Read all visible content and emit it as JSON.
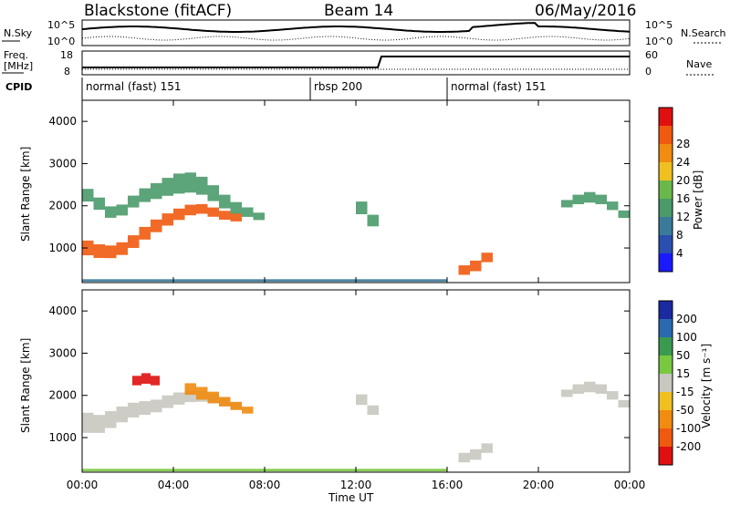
{
  "header": {
    "station": "Blackstone (fitACF)",
    "beam": "Beam 14",
    "date": "06/May/2016"
  },
  "sky_panel": {
    "left_label": "N.Sky",
    "right_label": "N.Search",
    "left_ticks": [
      "10^5",
      "10^0"
    ],
    "right_ticks": [
      "10^5",
      "10^0"
    ]
  },
  "freq_panel": {
    "left_label_1": "Freq.",
    "left_label_2": "[MHz]",
    "right_label": "Nave",
    "left_ticks": [
      "18",
      "8"
    ],
    "right_ticks": [
      "60",
      "0"
    ]
  },
  "cpid": {
    "label": "CPID",
    "segments": [
      {
        "name": "normal (fast) 151",
        "start_hour": 0
      },
      {
        "name": "rbsp 200",
        "start_hour": 10
      },
      {
        "name": "normal (fast) 151",
        "start_hour": 16
      }
    ]
  },
  "x_axis": {
    "label": "Time UT",
    "tick_labels": [
      "00:00",
      "04:00",
      "08:00",
      "12:00",
      "16:00",
      "20:00",
      "00:00"
    ],
    "tick_hours": [
      0,
      4,
      8,
      12,
      16,
      20,
      24
    ]
  },
  "colors": {
    "power": [
      "#1a1aff",
      "#2a4fb0",
      "#3a7a9a",
      "#4a9a6a",
      "#6ab84a",
      "#f0c020",
      "#f08c10",
      "#f05a10",
      "#e01010"
    ],
    "velocity": [
      "#e01010",
      "#f05a10",
      "#f08c10",
      "#f0c020",
      "#c8c8c0",
      "#7ac840",
      "#3a9a50",
      "#2a6ab0",
      "#1a2aa0"
    ]
  },
  "chart_data": [
    {
      "type": "heatmap",
      "title": "Power",
      "ylabel": "Slant Range [km]",
      "xlabel": "Time UT",
      "xlim": [
        0,
        24
      ],
      "ylim": [
        180,
        4500
      ],
      "y_ticks": [
        1000,
        2000,
        3000,
        4000
      ],
      "colorbar": {
        "label": "Power [dB]",
        "ticks": [
          4,
          8,
          12,
          16,
          20,
          24,
          28
        ],
        "range": [
          0,
          30
        ]
      },
      "regions": [
        {
          "name": "band-strong",
          "t": [
            0,
            0.5,
            1,
            1.5,
            2,
            2.5,
            3,
            3.5,
            4,
            4.5,
            5,
            5.5,
            6,
            6.5,
            7
          ],
          "r": [
            1050,
            950,
            900,
            920,
            1050,
            1250,
            1450,
            1600,
            1750,
            1850,
            1950,
            1900,
            1800,
            1750,
            1700
          ],
          "w": [
            350,
            350,
            300,
            300,
            300,
            300,
            300,
            300,
            280,
            260,
            240,
            220,
            220,
            200,
            180
          ],
          "level": 25
        },
        {
          "name": "band-weak",
          "t": [
            0,
            0.5,
            1,
            1.5,
            2,
            2.5,
            3,
            3.5,
            4,
            4.5,
            5,
            5.5,
            6,
            6.5,
            7,
            7.5,
            8
          ],
          "r": [
            2300,
            2200,
            1900,
            1800,
            2000,
            2200,
            2300,
            2400,
            2500,
            2550,
            2550,
            2400,
            2200,
            2000,
            1900,
            1800,
            1700
          ],
          "w": [
            300,
            300,
            280,
            260,
            260,
            300,
            350,
            400,
            450,
            500,
            450,
            400,
            350,
            300,
            250,
            200,
            150
          ],
          "level": 9
        },
        {
          "name": "late-evening-streaks",
          "t": [
            12,
            12.5,
            13
          ],
          "r": [
            2100,
            1800,
            1500
          ],
          "w": [
            300,
            300,
            250
          ],
          "level": 10
        },
        {
          "name": "post-16-burst",
          "t": [
            16.5,
            17,
            17.5,
            18
          ],
          "r": [
            450,
            500,
            650,
            900
          ],
          "w": [
            200,
            250,
            250,
            200
          ],
          "level": 27
        },
        {
          "name": "post-20-streak",
          "t": [
            21,
            21.5,
            22,
            22.5,
            23,
            23.5,
            24
          ],
          "r": [
            2000,
            2100,
            2200,
            2200,
            2100,
            1900,
            1700
          ],
          "w": [
            150,
            200,
            250,
            250,
            200,
            200,
            150
          ],
          "level": 12
        },
        {
          "name": "ground-scatter-line",
          "t": [
            0,
            4,
            8,
            12,
            16
          ],
          "r": [
            230,
            230,
            230,
            230,
            230
          ],
          "w": [
            60,
            60,
            60,
            60,
            60
          ],
          "level": 7
        }
      ]
    },
    {
      "type": "heatmap",
      "title": "Velocity",
      "ylabel": "Slant Range [km]",
      "xlabel": "Time UT",
      "xlim": [
        0,
        24
      ],
      "ylim": [
        180,
        4500
      ],
      "y_ticks": [
        1000,
        2000,
        3000,
        4000
      ],
      "colorbar": {
        "label": "Velocity [m s⁻¹]",
        "ticks": [
          -200,
          -100,
          -50,
          -15,
          15,
          50,
          100,
          200
        ]
      },
      "regions": [
        {
          "name": "grey-ground-scatter",
          "t": [
            0,
            0.5,
            1,
            1.5,
            2,
            2.5,
            3,
            3.5,
            4,
            4.5,
            5,
            5.5,
            6,
            6.5,
            7
          ],
          "r": [
            1400,
            1300,
            1350,
            1500,
            1600,
            1700,
            1700,
            1800,
            1900,
            1950,
            2000,
            1950,
            1900,
            1800,
            1700
          ],
          "w": [
            500,
            450,
            400,
            400,
            350,
            350,
            300,
            300,
            300,
            280,
            260,
            240,
            220,
            200,
            180
          ],
          "level": 0
        },
        {
          "name": "red-patch",
          "t": [
            2.2,
            2.6,
            3,
            3.4
          ],
          "r": [
            2300,
            2400,
            2400,
            2300
          ],
          "w": [
            200,
            250,
            250,
            200
          ],
          "level": -200
        },
        {
          "name": "orange-patch",
          "t": [
            4.5,
            5,
            5.5,
            6,
            6.5,
            7,
            7.5
          ],
          "r": [
            2200,
            2100,
            2000,
            1900,
            1800,
            1700,
            1600
          ],
          "w": [
            250,
            300,
            300,
            250,
            200,
            180,
            150
          ],
          "level": -70
        },
        {
          "name": "grey-after-12",
          "t": [
            12,
            12.5,
            13
          ],
          "r": [
            2000,
            1800,
            1500
          ],
          "w": [
            250,
            250,
            200
          ],
          "level": 0
        },
        {
          "name": "grey-after-16",
          "t": [
            16.5,
            17,
            17.5,
            18
          ],
          "r": [
            500,
            550,
            650,
            850
          ],
          "w": [
            200,
            250,
            250,
            200
          ],
          "level": 0
        },
        {
          "name": "grey-after-20",
          "t": [
            21,
            21.5,
            22,
            22.5,
            23,
            23.5,
            24
          ],
          "r": [
            2000,
            2100,
            2200,
            2200,
            2100,
            1900,
            1700
          ],
          "w": [
            150,
            200,
            250,
            250,
            200,
            200,
            150
          ],
          "level": 0
        },
        {
          "name": "bottom-line",
          "t": [
            0,
            4,
            8,
            12,
            16
          ],
          "r": [
            230,
            230,
            230,
            230,
            230
          ],
          "w": [
            60,
            60,
            60,
            60,
            60
          ],
          "level": 30
        }
      ]
    }
  ]
}
